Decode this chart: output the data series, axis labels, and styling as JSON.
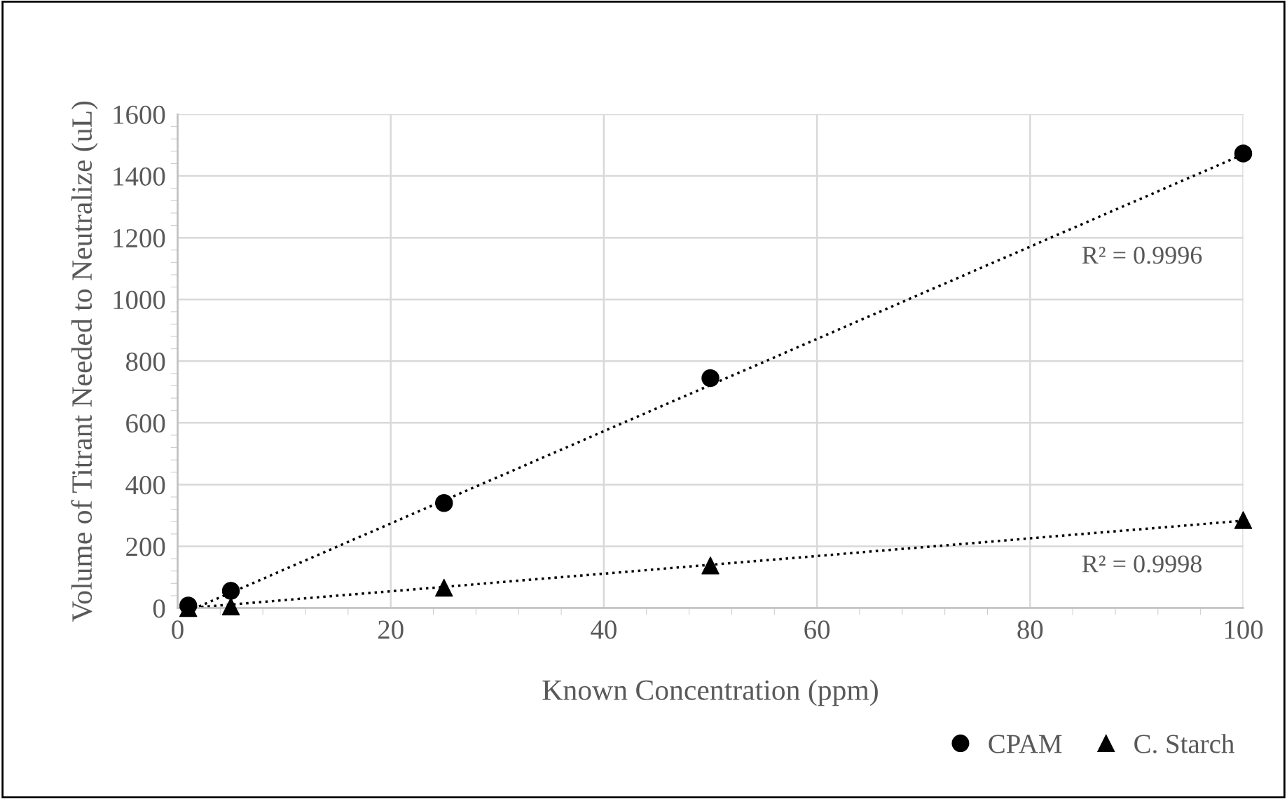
{
  "chart_data": {
    "type": "scatter",
    "xlabel": "Known Concentration (ppm)",
    "ylabel": "Volume of Titrant Needed to Neutralize (uL)",
    "x": [
      1,
      5,
      25,
      50,
      100
    ],
    "series": [
      {
        "name": "CPAM",
        "color": "#000000",
        "marker": "circle",
        "values": [
          8,
          56,
          340,
          745,
          1473
        ]
      },
      {
        "name": "C. Starch",
        "color": "#000000",
        "marker": "triangle",
        "values": [
          0,
          5,
          66,
          138,
          285
        ]
      },
      {
        "type": "line",
        "color": "#000000",
        "line_style": "dotted",
        "marker": "none",
        "x": [
          2,
          100
        ],
        "values": [
          5,
          1470
        ]
      },
      {
        "type": "line",
        "color": "#000000",
        "line_style": "dotted",
        "marker": "none",
        "x": [
          1,
          100
        ],
        "values": [
          0,
          283
        ]
      }
    ],
    "annotations": [
      "R² = 0.9996",
      "R² = 0.9998"
    ],
    "xlim": [
      0,
      100
    ],
    "xticks": [
      0,
      20,
      40,
      60,
      80,
      100
    ],
    "ylim": [
      0,
      1600
    ],
    "yticks": [
      0,
      200,
      400,
      600,
      800,
      1000,
      1200,
      1400,
      1600
    ],
    "grid": true,
    "legend": "bottom right"
  }
}
